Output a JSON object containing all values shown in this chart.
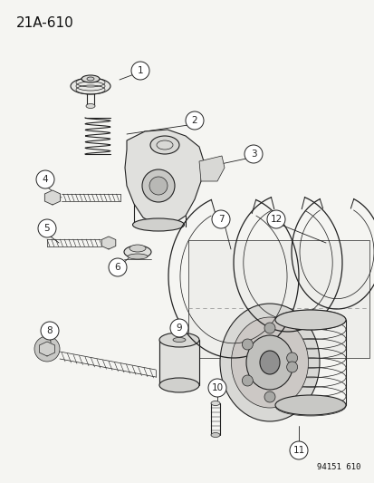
{
  "title_text": "21A-610",
  "watermark": "94151 610",
  "bg_color": "#f5f5f2",
  "line_color": "#222222",
  "label_color": "#111111",
  "title_fontsize": 11,
  "label_fontsize": 7.5,
  "watermark_fontsize": 6.5
}
